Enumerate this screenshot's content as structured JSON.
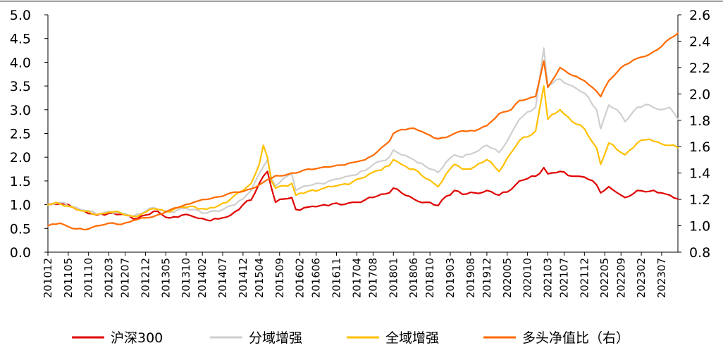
{
  "chart_data": {
    "type": "line",
    "title": "",
    "xlabel": "",
    "ylabel": "",
    "y_left_range": [
      0.0,
      5.0
    ],
    "y_left_ticks": [
      "0.0",
      "0.5",
      "1.0",
      "1.5",
      "2.0",
      "2.5",
      "3.0",
      "3.5",
      "4.0",
      "4.5",
      "5.0"
    ],
    "y_right_range": [
      0.8,
      2.6
    ],
    "y_right_ticks": [
      "0.8",
      "1.0",
      "1.2",
      "1.4",
      "1.6",
      "1.8",
      "2.0",
      "2.2",
      "2.4",
      "2.6"
    ],
    "x_tick_labels": [
      "201012",
      "201105",
      "201110",
      "201203",
      "201207",
      "201212",
      "201305",
      "201310",
      "201402",
      "201407",
      "201412",
      "201504",
      "201509",
      "201602",
      "201606",
      "201611",
      "201704",
      "201708",
      "201801",
      "201806",
      "201810",
      "201903",
      "201908",
      "201912",
      "202005",
      "202010",
      "202103",
      "202107",
      "202112",
      "202205",
      "202209",
      "202302",
      "202307"
    ],
    "x_start": "2010-12",
    "x_end": "2023-11",
    "grid": false,
    "legend_position": "bottom",
    "series": [
      {
        "name": "沪深300",
        "axis": "left",
        "color": "#E00000",
        "points": [
          [
            "2010-12",
            1.0
          ],
          [
            "2011-03",
            1.02
          ],
          [
            "2011-06",
            0.95
          ],
          [
            "2011-09",
            0.86
          ],
          [
            "2011-12",
            0.78
          ],
          [
            "2012-03",
            0.82
          ],
          [
            "2012-06",
            0.8
          ],
          [
            "2012-09",
            0.7
          ],
          [
            "2012-12",
            0.78
          ],
          [
            "2013-02",
            0.86
          ],
          [
            "2013-06",
            0.72
          ],
          [
            "2013-09",
            0.78
          ],
          [
            "2013-12",
            0.74
          ],
          [
            "2014-03",
            0.68
          ],
          [
            "2014-06",
            0.7
          ],
          [
            "2014-09",
            0.78
          ],
          [
            "2014-12",
            1.0
          ],
          [
            "2015-02",
            1.1
          ],
          [
            "2015-04",
            1.45
          ],
          [
            "2015-05",
            1.6
          ],
          [
            "2015-06",
            1.7
          ],
          [
            "2015-07",
            1.35
          ],
          [
            "2015-08",
            1.05
          ],
          [
            "2015-10",
            1.12
          ],
          [
            "2015-12",
            1.15
          ],
          [
            "2016-01",
            0.9
          ],
          [
            "2016-04",
            0.95
          ],
          [
            "2016-07",
            0.98
          ],
          [
            "2016-10",
            1.02
          ],
          [
            "2016-12",
            1.0
          ],
          [
            "2017-03",
            1.05
          ],
          [
            "2017-06",
            1.1
          ],
          [
            "2017-09",
            1.18
          ],
          [
            "2017-12",
            1.25
          ],
          [
            "2018-01",
            1.35
          ],
          [
            "2018-03",
            1.25
          ],
          [
            "2018-06",
            1.12
          ],
          [
            "2018-09",
            1.05
          ],
          [
            "2018-12",
            0.98
          ],
          [
            "2019-02",
            1.18
          ],
          [
            "2019-04",
            1.3
          ],
          [
            "2019-06",
            1.22
          ],
          [
            "2019-09",
            1.25
          ],
          [
            "2019-12",
            1.3
          ],
          [
            "2020-03",
            1.2
          ],
          [
            "2020-06",
            1.32
          ],
          [
            "2020-08",
            1.5
          ],
          [
            "2020-12",
            1.6
          ],
          [
            "2021-02",
            1.78
          ],
          [
            "2021-03",
            1.65
          ],
          [
            "2021-06",
            1.7
          ],
          [
            "2021-09",
            1.6
          ],
          [
            "2021-12",
            1.58
          ],
          [
            "2022-03",
            1.42
          ],
          [
            "2022-04",
            1.25
          ],
          [
            "2022-06",
            1.38
          ],
          [
            "2022-09",
            1.2
          ],
          [
            "2022-10",
            1.15
          ],
          [
            "2023-01",
            1.3
          ],
          [
            "2023-04",
            1.28
          ],
          [
            "2023-07",
            1.25
          ],
          [
            "2023-09",
            1.2
          ],
          [
            "2023-11",
            1.12
          ]
        ]
      },
      {
        "name": "分域增强",
        "axis": "left",
        "color": "#CFCFCF",
        "points": [
          [
            "2010-12",
            1.0
          ],
          [
            "2011-03",
            1.05
          ],
          [
            "2011-06",
            0.96
          ],
          [
            "2011-09",
            0.88
          ],
          [
            "2011-12",
            0.8
          ],
          [
            "2012-03",
            0.86
          ],
          [
            "2012-06",
            0.82
          ],
          [
            "2012-09",
            0.76
          ],
          [
            "2012-12",
            0.86
          ],
          [
            "2013-02",
            0.94
          ],
          [
            "2013-06",
            0.84
          ],
          [
            "2013-09",
            0.92
          ],
          [
            "2013-12",
            0.9
          ],
          [
            "2014-03",
            0.82
          ],
          [
            "2014-06",
            0.86
          ],
          [
            "2014-09",
            0.98
          ],
          [
            "2014-12",
            1.12
          ],
          [
            "2015-02",
            1.3
          ],
          [
            "2015-04",
            1.65
          ],
          [
            "2015-05",
            1.8
          ],
          [
            "2015-06",
            1.95
          ],
          [
            "2015-07",
            1.55
          ],
          [
            "2015-08",
            1.4
          ],
          [
            "2015-10",
            1.55
          ],
          [
            "2015-12",
            1.65
          ],
          [
            "2016-01",
            1.3
          ],
          [
            "2016-04",
            1.4
          ],
          [
            "2016-07",
            1.45
          ],
          [
            "2016-10",
            1.52
          ],
          [
            "2016-12",
            1.55
          ],
          [
            "2017-03",
            1.62
          ],
          [
            "2017-06",
            1.72
          ],
          [
            "2017-09",
            1.9
          ],
          [
            "2017-12",
            2.0
          ],
          [
            "2018-01",
            2.15
          ],
          [
            "2018-03",
            2.05
          ],
          [
            "2018-06",
            1.95
          ],
          [
            "2018-09",
            1.8
          ],
          [
            "2018-12",
            1.68
          ],
          [
            "2019-02",
            1.9
          ],
          [
            "2019-04",
            2.05
          ],
          [
            "2019-06",
            2.0
          ],
          [
            "2019-09",
            2.1
          ],
          [
            "2019-12",
            2.25
          ],
          [
            "2020-03",
            2.1
          ],
          [
            "2020-06",
            2.5
          ],
          [
            "2020-08",
            2.8
          ],
          [
            "2020-12",
            3.05
          ],
          [
            "2021-02",
            4.3
          ],
          [
            "2021-03",
            3.5
          ],
          [
            "2021-06",
            3.65
          ],
          [
            "2021-09",
            3.5
          ],
          [
            "2021-12",
            3.35
          ],
          [
            "2022-03",
            3.0
          ],
          [
            "2022-04",
            2.6
          ],
          [
            "2022-06",
            3.1
          ],
          [
            "2022-09",
            2.9
          ],
          [
            "2022-10",
            2.75
          ],
          [
            "2023-01",
            3.05
          ],
          [
            "2023-04",
            3.1
          ],
          [
            "2023-07",
            3.0
          ],
          [
            "2023-09",
            3.05
          ],
          [
            "2023-11",
            2.8
          ]
        ]
      },
      {
        "name": "全域增强",
        "axis": "left",
        "color": "#FFC000",
        "points": [
          [
            "2010-12",
            1.0
          ],
          [
            "2011-03",
            1.02
          ],
          [
            "2011-06",
            0.95
          ],
          [
            "2011-09",
            0.86
          ],
          [
            "2011-12",
            0.79
          ],
          [
            "2012-03",
            0.84
          ],
          [
            "2012-06",
            0.82
          ],
          [
            "2012-09",
            0.75
          ],
          [
            "2012-12",
            0.84
          ],
          [
            "2013-02",
            0.92
          ],
          [
            "2013-06",
            0.85
          ],
          [
            "2013-09",
            0.95
          ],
          [
            "2013-12",
            0.96
          ],
          [
            "2014-03",
            0.9
          ],
          [
            "2014-06",
            0.98
          ],
          [
            "2014-09",
            1.12
          ],
          [
            "2014-12",
            1.3
          ],
          [
            "2015-02",
            1.45
          ],
          [
            "2015-04",
            1.85
          ],
          [
            "2015-05",
            2.25
          ],
          [
            "2015-06",
            2.0
          ],
          [
            "2015-07",
            1.5
          ],
          [
            "2015-08",
            1.35
          ],
          [
            "2015-10",
            1.4
          ],
          [
            "2015-12",
            1.45
          ],
          [
            "2016-01",
            1.2
          ],
          [
            "2016-04",
            1.28
          ],
          [
            "2016-07",
            1.32
          ],
          [
            "2016-10",
            1.38
          ],
          [
            "2016-12",
            1.42
          ],
          [
            "2017-03",
            1.48
          ],
          [
            "2017-06",
            1.58
          ],
          [
            "2017-09",
            1.72
          ],
          [
            "2017-12",
            1.82
          ],
          [
            "2018-01",
            1.95
          ],
          [
            "2018-03",
            1.85
          ],
          [
            "2018-06",
            1.75
          ],
          [
            "2018-09",
            1.55
          ],
          [
            "2018-12",
            1.38
          ],
          [
            "2019-02",
            1.65
          ],
          [
            "2019-04",
            1.85
          ],
          [
            "2019-06",
            1.75
          ],
          [
            "2019-09",
            1.8
          ],
          [
            "2019-12",
            1.95
          ],
          [
            "2020-03",
            1.7
          ],
          [
            "2020-06",
            2.1
          ],
          [
            "2020-08",
            2.35
          ],
          [
            "2020-12",
            2.55
          ],
          [
            "2021-02",
            3.5
          ],
          [
            "2021-03",
            2.8
          ],
          [
            "2021-06",
            3.0
          ],
          [
            "2021-09",
            2.75
          ],
          [
            "2021-12",
            2.6
          ],
          [
            "2022-03",
            2.2
          ],
          [
            "2022-04",
            1.85
          ],
          [
            "2022-06",
            2.3
          ],
          [
            "2022-09",
            2.1
          ],
          [
            "2022-10",
            2.05
          ],
          [
            "2023-01",
            2.3
          ],
          [
            "2023-04",
            2.38
          ],
          [
            "2023-07",
            2.28
          ],
          [
            "2023-09",
            2.25
          ],
          [
            "2023-11",
            2.2
          ]
        ]
      },
      {
        "name": "多头净值比（右）",
        "axis": "right",
        "color": "#FF6A00",
        "points": [
          [
            "2010-12",
            1.0
          ],
          [
            "2011-03",
            1.02
          ],
          [
            "2011-06",
            0.98
          ],
          [
            "2011-09",
            0.97
          ],
          [
            "2011-12",
            1.0
          ],
          [
            "2012-03",
            1.02
          ],
          [
            "2012-06",
            1.01
          ],
          [
            "2012-09",
            1.04
          ],
          [
            "2012-12",
            1.06
          ],
          [
            "2013-02",
            1.07
          ],
          [
            "2013-06",
            1.12
          ],
          [
            "2013-09",
            1.15
          ],
          [
            "2013-12",
            1.18
          ],
          [
            "2014-03",
            1.2
          ],
          [
            "2014-06",
            1.22
          ],
          [
            "2014-09",
            1.25
          ],
          [
            "2014-12",
            1.26
          ],
          [
            "2015-02",
            1.28
          ],
          [
            "2015-04",
            1.31
          ],
          [
            "2015-05",
            1.33
          ],
          [
            "2015-06",
            1.35
          ],
          [
            "2015-07",
            1.36
          ],
          [
            "2015-08",
            1.38
          ],
          [
            "2015-10",
            1.38
          ],
          [
            "2015-12",
            1.4
          ],
          [
            "2016-01",
            1.4
          ],
          [
            "2016-04",
            1.43
          ],
          [
            "2016-07",
            1.44
          ],
          [
            "2016-10",
            1.45
          ],
          [
            "2016-12",
            1.46
          ],
          [
            "2017-03",
            1.48
          ],
          [
            "2017-06",
            1.5
          ],
          [
            "2017-09",
            1.56
          ],
          [
            "2017-12",
            1.64
          ],
          [
            "2018-01",
            1.7
          ],
          [
            "2018-03",
            1.73
          ],
          [
            "2018-06",
            1.74
          ],
          [
            "2018-09",
            1.7
          ],
          [
            "2018-12",
            1.66
          ],
          [
            "2019-02",
            1.67
          ],
          [
            "2019-04",
            1.7
          ],
          [
            "2019-06",
            1.72
          ],
          [
            "2019-09",
            1.72
          ],
          [
            "2019-12",
            1.76
          ],
          [
            "2020-03",
            1.85
          ],
          [
            "2020-06",
            1.88
          ],
          [
            "2020-08",
            1.95
          ],
          [
            "2020-12",
            1.98
          ],
          [
            "2021-02",
            2.25
          ],
          [
            "2021-03",
            2.05
          ],
          [
            "2021-06",
            2.2
          ],
          [
            "2021-09",
            2.14
          ],
          [
            "2021-12",
            2.1
          ],
          [
            "2022-03",
            2.02
          ],
          [
            "2022-04",
            1.98
          ],
          [
            "2022-06",
            2.1
          ],
          [
            "2022-09",
            2.2
          ],
          [
            "2022-10",
            2.22
          ],
          [
            "2023-01",
            2.27
          ],
          [
            "2023-04",
            2.3
          ],
          [
            "2023-07",
            2.36
          ],
          [
            "2023-09",
            2.42
          ],
          [
            "2023-11",
            2.46
          ]
        ]
      }
    ]
  }
}
